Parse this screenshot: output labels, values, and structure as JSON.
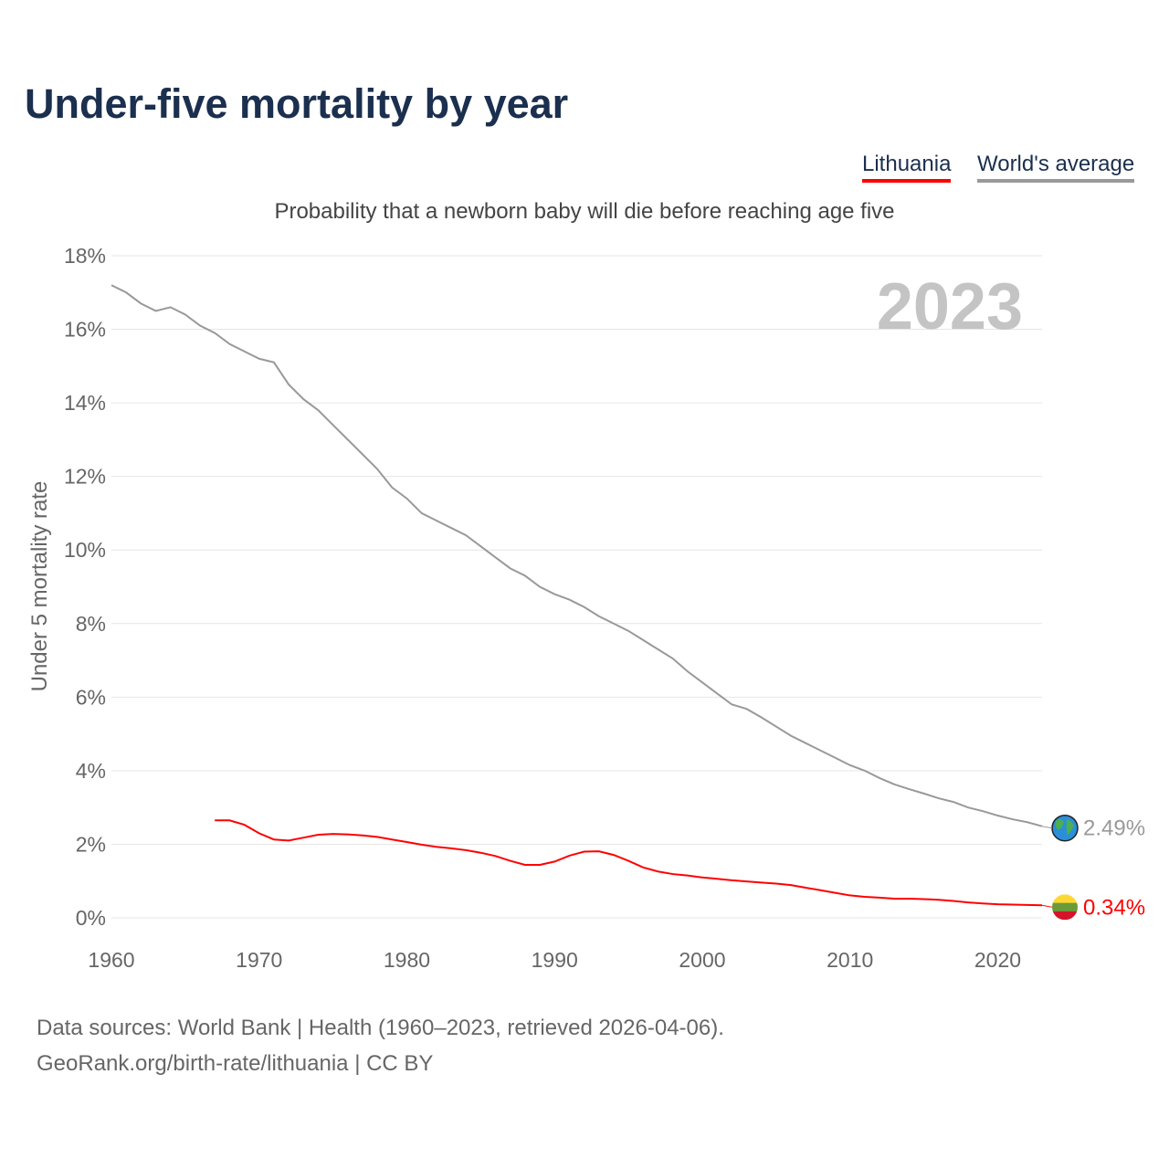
{
  "title": "Under-five mortality by year",
  "legend": {
    "lithuania": "Lithuania",
    "world": "World's average"
  },
  "footer": {
    "line1": "Data sources: World Bank | Health (1960–2023, retrieved 2026-04-06).",
    "line2": "GeoRank.org/birth-rate/lithuania | CC BY"
  },
  "chart_data": {
    "type": "line",
    "title": "Under-five mortality by year",
    "subtitle": "Probability that a newborn baby will die before reaching age five",
    "ylabel": "Under 5 mortality rate",
    "xlabel": "",
    "year_label": "2023",
    "ylim": [
      0,
      18
    ],
    "xlim": [
      1960,
      2023
    ],
    "yticks": [
      0,
      2,
      4,
      6,
      8,
      10,
      12,
      14,
      16,
      18
    ],
    "ytick_labels": [
      "0%",
      "2%",
      "4%",
      "6%",
      "8%",
      "10%",
      "12%",
      "14%",
      "16%",
      "18%"
    ],
    "xticks": [
      1960,
      1970,
      1980,
      1990,
      2000,
      2010,
      2020
    ],
    "xtick_labels": [
      "1960",
      "1970",
      "1980",
      "1990",
      "2000",
      "2010",
      "2020"
    ],
    "grid": true,
    "legend_position": "top-right",
    "colors": {
      "lithuania": "#ff0000",
      "world": "#999999"
    },
    "series": [
      {
        "name": "World's average",
        "key": "world",
        "end_label": "2.49%",
        "start": 1960,
        "values": [
          17.2,
          17.0,
          16.7,
          16.5,
          16.6,
          16.4,
          16.1,
          15.9,
          15.6,
          15.4,
          15.2,
          15.1,
          14.5,
          14.1,
          13.8,
          13.4,
          13.0,
          12.6,
          12.2,
          11.7,
          11.4,
          11.0,
          10.8,
          10.6,
          10.4,
          10.1,
          9.8,
          9.5,
          9.3,
          9.0,
          8.8,
          8.65,
          8.45,
          8.2,
          8.0,
          7.8,
          7.55,
          7.3,
          7.05,
          6.7,
          6.4,
          6.1,
          5.8,
          5.68,
          5.45,
          5.2,
          4.95,
          4.75,
          4.55,
          4.35,
          4.15,
          4.0,
          3.8,
          3.63,
          3.5,
          3.38,
          3.25,
          3.15,
          3.0,
          2.9,
          2.78,
          2.68,
          2.6,
          2.49
        ]
      },
      {
        "name": "Lithuania",
        "key": "lithuania",
        "end_label": "0.34%",
        "start": 1967,
        "values": [
          2.65,
          2.65,
          2.53,
          2.3,
          2.13,
          2.1,
          2.18,
          2.26,
          2.28,
          2.27,
          2.24,
          2.2,
          2.13,
          2.06,
          1.99,
          1.93,
          1.89,
          1.84,
          1.77,
          1.68,
          1.55,
          1.44,
          1.44,
          1.53,
          1.69,
          1.8,
          1.81,
          1.71,
          1.55,
          1.37,
          1.26,
          1.19,
          1.15,
          1.1,
          1.06,
          1.02,
          0.99,
          0.96,
          0.93,
          0.89,
          0.82,
          0.75,
          0.68,
          0.61,
          0.57,
          0.55,
          0.52,
          0.52,
          0.51,
          0.49,
          0.46,
          0.42,
          0.39,
          0.37,
          0.36,
          0.35,
          0.34
        ]
      }
    ]
  }
}
